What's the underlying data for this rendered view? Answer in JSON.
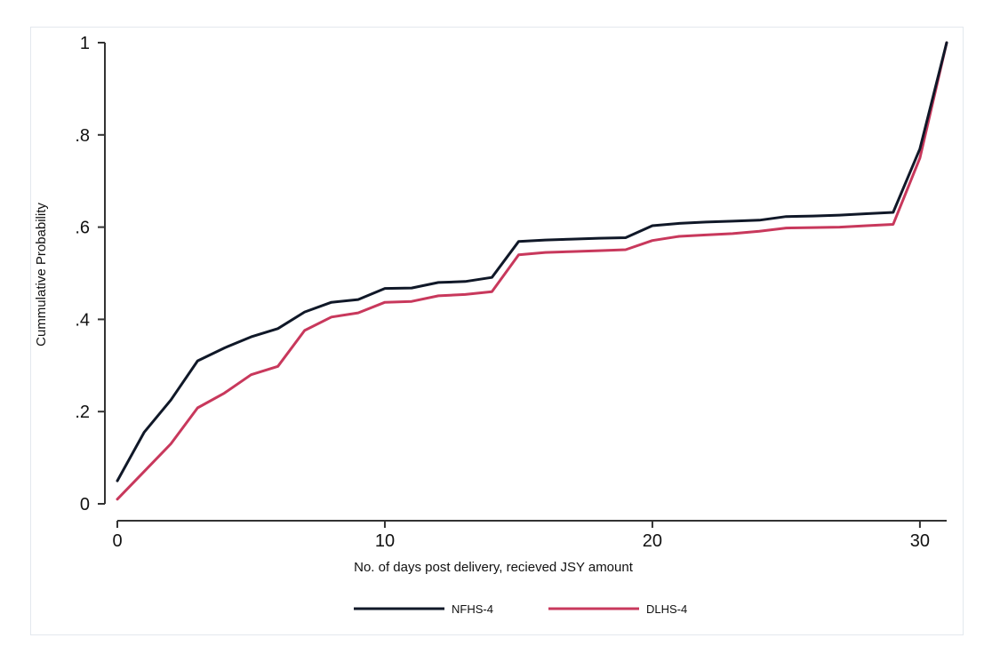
{
  "chart_data": {
    "type": "line",
    "xlabel": "No. of days post delivery, recieved JSY amount",
    "ylabel": "Cummulative Probability",
    "xlim": [
      0,
      31
    ],
    "ylim": [
      0,
      1
    ],
    "xticks": [
      0,
      10,
      20,
      30
    ],
    "xtick_labels": [
      "0",
      "10",
      "20",
      "30"
    ],
    "yticks": [
      0,
      0.2,
      0.4,
      0.6,
      0.8,
      1
    ],
    "ytick_labels": [
      "0",
      ".2",
      ".4",
      ".6",
      ".8",
      "1"
    ],
    "grid": false,
    "legend_position": "bottom",
    "x": [
      0,
      1,
      2,
      3,
      4,
      5,
      6,
      7,
      8,
      9,
      10,
      11,
      12,
      13,
      14,
      15,
      16,
      17,
      18,
      19,
      20,
      21,
      22,
      23,
      24,
      25,
      26,
      27,
      28,
      29,
      30,
      31
    ],
    "series": [
      {
        "name": "NFHS-4",
        "color": "#101828",
        "values": [
          0.05,
          0.155,
          0.225,
          0.31,
          0.338,
          0.362,
          0.38,
          0.416,
          0.437,
          0.443,
          0.467,
          0.468,
          0.48,
          0.482,
          0.491,
          0.569,
          0.572,
          0.574,
          0.576,
          0.577,
          0.603,
          0.608,
          0.611,
          0.613,
          0.615,
          0.623,
          0.624,
          0.626,
          0.629,
          0.632,
          0.77,
          1.0
        ]
      },
      {
        "name": "DLHS-4",
        "color": "#c8385c",
        "values": [
          0.01,
          0.07,
          0.13,
          0.208,
          0.24,
          0.28,
          0.298,
          0.376,
          0.405,
          0.414,
          0.437,
          0.439,
          0.451,
          0.454,
          0.46,
          0.54,
          0.545,
          0.547,
          0.549,
          0.551,
          0.571,
          0.58,
          0.583,
          0.586,
          0.591,
          0.598,
          0.599,
          0.6,
          0.603,
          0.606,
          0.75,
          1.0
        ]
      }
    ]
  }
}
